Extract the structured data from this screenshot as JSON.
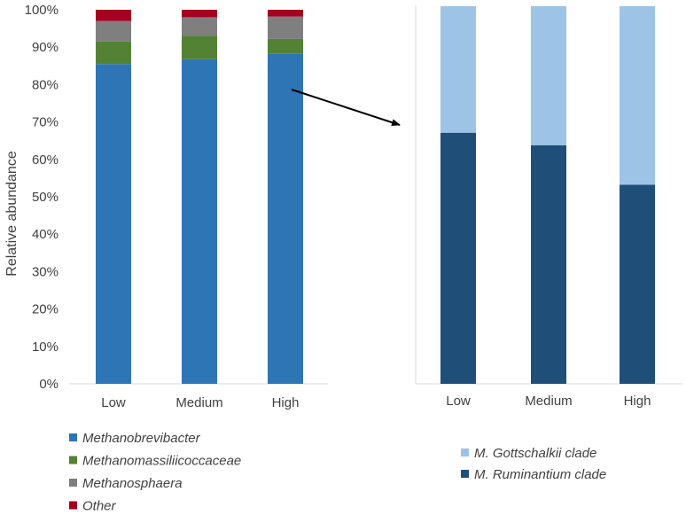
{
  "chart_data": [
    {
      "type": "bar",
      "stacked": true,
      "categories": [
        "Low",
        "Medium",
        "High"
      ],
      "ylabel": "Relative abundance",
      "ylim": [
        0,
        100
      ],
      "yticks": [
        "0%",
        "10%",
        "20%",
        "30%",
        "40%",
        "50%",
        "60%",
        "70%",
        "80%",
        "90%",
        "100%"
      ],
      "series": [
        {
          "name": "Methanobrevibacter",
          "color": "#2E75B6",
          "values": [
            85.5,
            86.8,
            88.2
          ]
        },
        {
          "name": "Methanomassiliicoccaceae",
          "color": "#548235",
          "values": [
            6.0,
            6.2,
            4.0
          ]
        },
        {
          "name": "Methanosphaera",
          "color": "#7F7F7F",
          "values": [
            5.5,
            5.0,
            6.0
          ]
        },
        {
          "name": "Other",
          "color": "#A50021",
          "values": [
            3.0,
            2.0,
            1.8
          ]
        }
      ],
      "legend": "bottom",
      "grid": false
    },
    {
      "type": "bar",
      "stacked": true,
      "categories": [
        "Low",
        "Medium",
        "High"
      ],
      "ylim": [
        0,
        100
      ],
      "series": [
        {
          "name": "M. Ruminantium clade",
          "color": "#1F4E79",
          "values": [
            66.5,
            63.2,
            52.7
          ]
        },
        {
          "name": "M. Gottschalkii clade",
          "color": "#9DC3E6",
          "values": [
            33.5,
            36.8,
            47.3
          ]
        }
      ],
      "legend_order": [
        "M. Gottschalkii clade",
        "M. Ruminantium clade"
      ],
      "legend": "bottom",
      "grid": false
    }
  ]
}
